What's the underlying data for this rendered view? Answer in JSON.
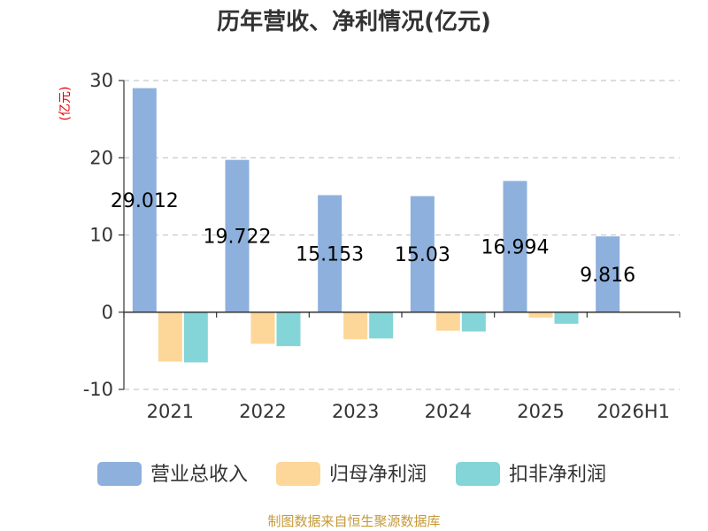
{
  "chart_data": {
    "type": "bar",
    "title": "历年营收、净利情况(亿元)",
    "ylabel": "(亿元)",
    "categories": [
      "2021",
      "2022",
      "2023",
      "2024",
      "2025",
      "2026H1"
    ],
    "series": [
      {
        "name": "营业总收入",
        "color": "#8eb0dc",
        "values": [
          29.012,
          19.722,
          15.153,
          15.03,
          16.994,
          9.816
        ]
      },
      {
        "name": "归母净利润",
        "color": "#fdd699",
        "values": [
          -6.4,
          -4.1,
          -3.5,
          -2.4,
          -0.7,
          -0.1
        ]
      },
      {
        "name": "扣非净利润",
        "color": "#84d5d8",
        "values": [
          -6.5,
          -4.4,
          -3.4,
          -2.5,
          -1.5,
          -0.05
        ]
      }
    ],
    "data_labels": [
      "29.012",
      "19.722",
      "15.153",
      "15.03",
      "16.994",
      "9.816"
    ],
    "ylim": [
      -10,
      30
    ],
    "yticks": [
      -10,
      0,
      10,
      20,
      30
    ],
    "grid": true,
    "legend_position": "bottom"
  },
  "source_note": "制图数据来自恒生聚源数据库"
}
